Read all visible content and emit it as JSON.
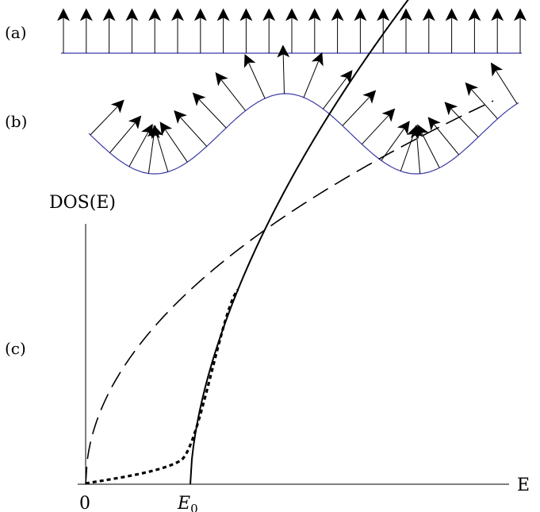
{
  "figure": {
    "panels": {
      "a": {
        "label": "(a)"
      },
      "b": {
        "label": "(b)"
      },
      "c": {
        "label": "(c)"
      }
    },
    "colors": {
      "ink": "#000000",
      "baseline": "#3a3aa6"
    },
    "panel_a": {
      "arrow_count": 21,
      "arrow_direction": "up",
      "substrate": "flat"
    },
    "panel_b": {
      "arrow_count": 23,
      "arrow_direction": "normal-to-surface",
      "substrate": "sinusoidal"
    },
    "panel_c": {
      "ylabel": "DOS(E)",
      "xlabel": "E",
      "ticks": {
        "zero": "0",
        "e0_main": "E",
        "e0_sub": "0"
      },
      "curves": [
        {
          "style": "long-dash",
          "shape": "sqrt-from-0"
        },
        {
          "style": "short-dash",
          "shape": "tail-from-0-joining-solid"
        },
        {
          "style": "solid",
          "shape": "sqrt-from-E0"
        }
      ]
    }
  }
}
